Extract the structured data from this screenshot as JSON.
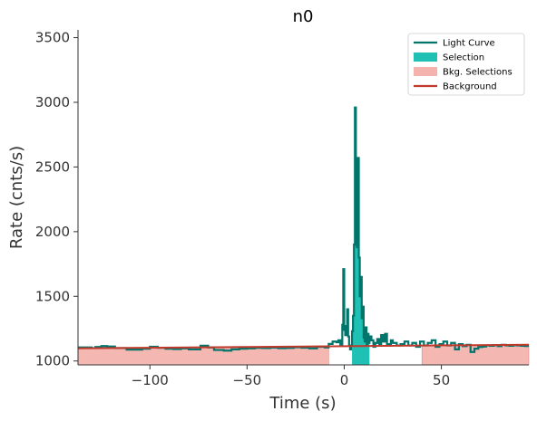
{
  "chart_data": {
    "type": "line",
    "title": "n0",
    "xlabel": "Time (s)",
    "ylabel": "Rate (cnts/s)",
    "xlim": [
      -137,
      95
    ],
    "ylim": [
      970,
      3560
    ],
    "x_ticks": [
      -100,
      -50,
      0,
      50
    ],
    "x_tick_labels": [
      "−100",
      "−50",
      "0",
      "50"
    ],
    "y_ticks": [
      1000,
      1500,
      2000,
      2500,
      3000,
      3500
    ],
    "y_tick_labels": [
      "1000",
      "1500",
      "2000",
      "2500",
      "3000",
      "3500"
    ],
    "grid": false,
    "legend_position": "top-right",
    "legend": [
      {
        "label": "Light Curve",
        "kind": "line",
        "color": "#00756b"
      },
      {
        "label": "Selection",
        "kind": "patch",
        "color": "#1fc1b4"
      },
      {
        "label": "Bkg. Selections",
        "kind": "patch",
        "color": "#f4b3ad"
      },
      {
        "label": "Background",
        "kind": "line",
        "color": "#c0392b"
      }
    ],
    "series": [
      {
        "name": "Light Curve",
        "style": "step",
        "color": "#00756b",
        "x": [
          -137,
          -130,
          -128,
          -125,
          -122,
          -118,
          -112,
          -104,
          -100,
          -96,
          -92,
          -88,
          -84,
          -80,
          -74,
          -70,
          -67,
          -62,
          -58,
          -54,
          -50,
          -46,
          -42,
          -38,
          -34,
          -30,
          -26,
          -22,
          -18,
          -14,
          -10,
          -8,
          -6,
          -4,
          -3,
          -2,
          -1,
          -0.5,
          0,
          0.5,
          1,
          1.5,
          2,
          2.5,
          3,
          3.5,
          4,
          4.5,
          5,
          5.5,
          6,
          6.5,
          7,
          7.5,
          8,
          8.5,
          9,
          9.5,
          10,
          10.5,
          11,
          11.5,
          12,
          12.5,
          13,
          14,
          15,
          16,
          17,
          18,
          19,
          20,
          21,
          22,
          23,
          24,
          25,
          27,
          29,
          31,
          33,
          35,
          37,
          39,
          41,
          43,
          45,
          47,
          49,
          51,
          53,
          55,
          57,
          59,
          61,
          63,
          65,
          67,
          69,
          71,
          73,
          75,
          77,
          79,
          81,
          83,
          85,
          87,
          89,
          91,
          93,
          95
        ],
        "y": [
          1105,
          1100,
          1108,
          1115,
          1112,
          1100,
          1088,
          1095,
          1110,
          1102,
          1095,
          1092,
          1098,
          1090,
          1118,
          1105,
          1085,
          1080,
          1090,
          1095,
          1098,
          1102,
          1100,
          1104,
          1099,
          1101,
          1106,
          1103,
          1098,
          1110,
          1105,
          1132,
          1150,
          1145,
          1160,
          1120,
          1280,
          1710,
          1240,
          1200,
          1270,
          1400,
          1190,
          1120,
          1090,
          1120,
          1230,
          1350,
          1900,
          2960,
          2300,
          1880,
          2570,
          1800,
          1500,
          1650,
          1330,
          1420,
          1180,
          1150,
          1260,
          1120,
          1210,
          1140,
          1190,
          1160,
          1110,
          1140,
          1170,
          1130,
          1200,
          1150,
          1210,
          1130,
          1120,
          1160,
          1140,
          1120,
          1130,
          1150,
          1120,
          1140,
          1110,
          1150,
          1120,
          1140,
          1160,
          1110,
          1130,
          1150,
          1120,
          1140,
          1090,
          1130,
          1115,
          1125,
          1070,
          1095,
          1108,
          1112,
          1120,
          1118,
          1122,
          1115,
          1125,
          1120,
          1118,
          1122,
          1120,
          1118,
          1116,
          1115
        ]
      },
      {
        "name": "Background",
        "style": "line",
        "color": "#c0392b",
        "x": [
          -137,
          95
        ],
        "y": [
          1098,
          1126
        ]
      }
    ],
    "selection_interval": [
      4,
      13
    ],
    "bkg_selections": [
      [
        -137,
        -8
      ],
      [
        40,
        95
      ]
    ]
  }
}
